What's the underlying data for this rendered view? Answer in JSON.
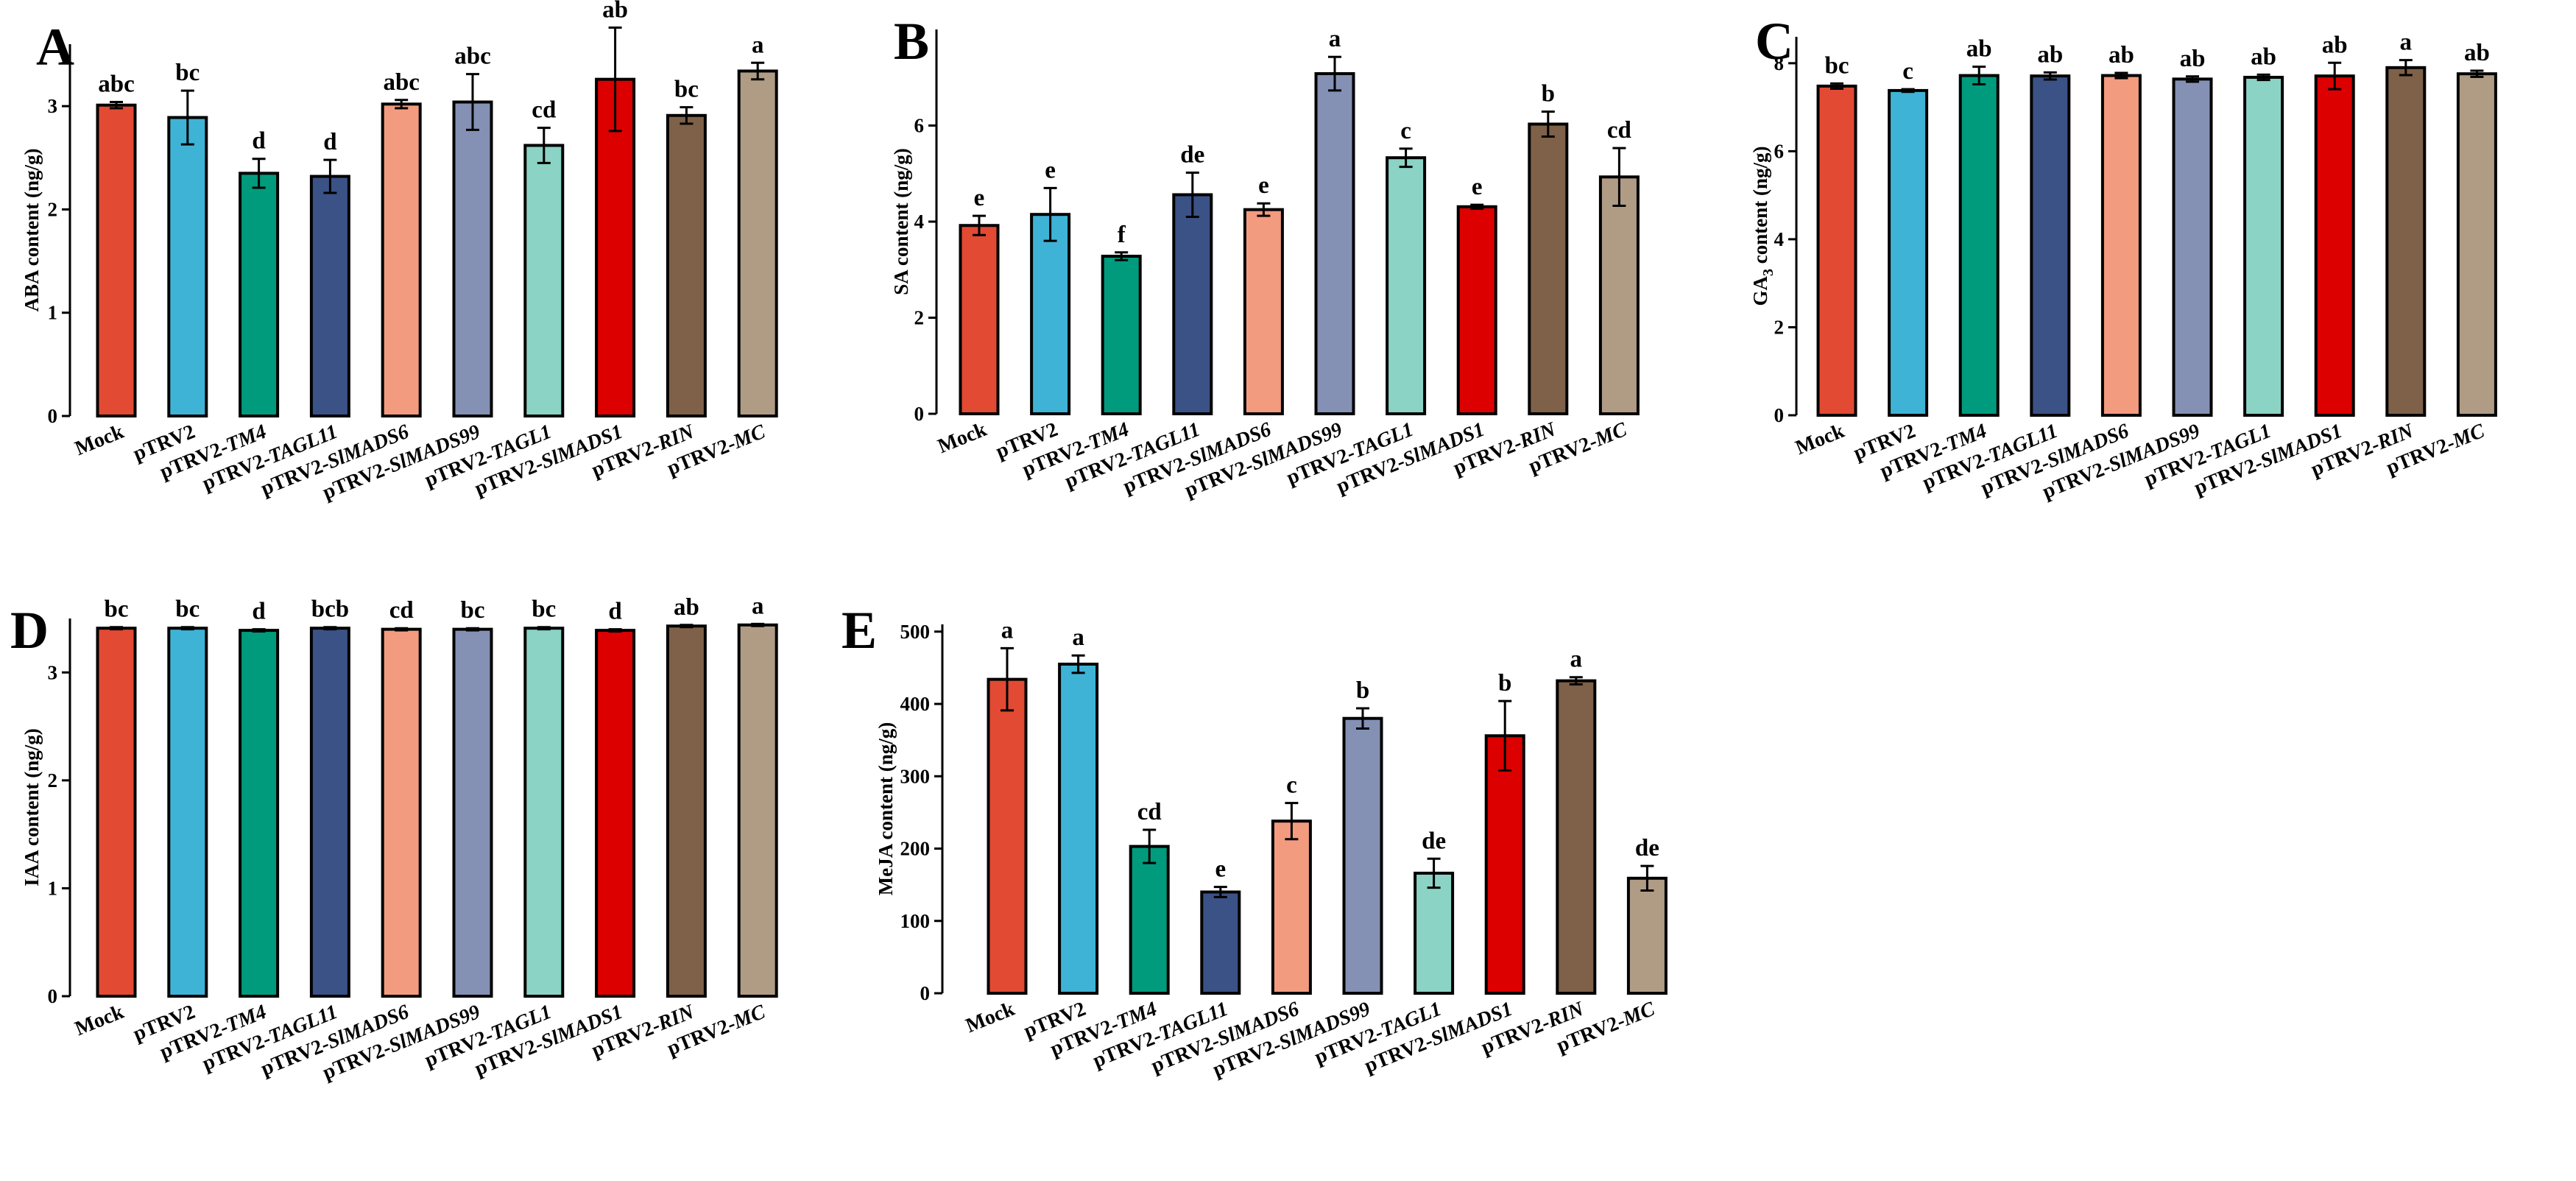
{
  "colors": [
    "#e24a33",
    "#3fb3d5",
    "#009b7d",
    "#3b5286",
    "#f39b7f",
    "#8491b4",
    "#8bd3c4",
    "#dc0000",
    "#7e6148",
    "#b09c85"
  ],
  "categories": [
    {
      "prefix": "",
      "gene": "Mock"
    },
    {
      "prefix": "pTRV2",
      "gene": ""
    },
    {
      "prefix": "pTRV2-",
      "gene": "TM4"
    },
    {
      "prefix": "pTRV2-",
      "gene": "TAGL11"
    },
    {
      "prefix": "pTRV2-",
      "gene": "SlMADS6"
    },
    {
      "prefix": "pTRV2-",
      "gene": "SlMADS99"
    },
    {
      "prefix": "pTRV2-",
      "gene": "TAGL1"
    },
    {
      "prefix": "pTRV2-",
      "gene": "SlMADS1"
    },
    {
      "prefix": "pTRV2-",
      "gene": "RIN"
    },
    {
      "prefix": "pTRV2-",
      "gene": "MC"
    }
  ],
  "chart_data": [
    {
      "type": "bar",
      "panel": "A",
      "ylabel": "ABA content (ng/g)",
      "ylim": [
        0,
        3.6
      ],
      "yticks": [
        0,
        1,
        2,
        3
      ],
      "values": [
        3.01,
        2.89,
        2.35,
        2.32,
        3.02,
        3.04,
        2.62,
        3.26,
        2.91,
        3.34
      ],
      "errors": [
        0.03,
        0.26,
        0.14,
        0.16,
        0.04,
        0.27,
        0.17,
        0.5,
        0.08,
        0.08
      ],
      "labels": [
        "abc",
        "bc",
        "d",
        "d",
        "abc",
        "abc",
        "cd",
        "ab",
        "bc",
        "a"
      ]
    },
    {
      "type": "bar",
      "panel": "B",
      "ylabel": "SA content (ng/g)",
      "ylim": [
        0,
        8
      ],
      "yticks": [
        0,
        2,
        4,
        6
      ],
      "values": [
        3.92,
        4.15,
        3.28,
        4.56,
        4.25,
        7.08,
        5.33,
        4.31,
        6.03,
        4.93
      ],
      "errors": [
        0.2,
        0.55,
        0.08,
        0.46,
        0.13,
        0.35,
        0.19,
        0.04,
        0.26,
        0.6
      ],
      "labels": [
        "e",
        "e",
        "f",
        "de",
        "e",
        "a",
        "c",
        "e",
        "b",
        "cd"
      ]
    },
    {
      "type": "bar",
      "panel": "C",
      "ylabel_main": "GA",
      "ylabel_sub": "3",
      "ylabel_rest": " content (ng/g)",
      "ylim": [
        0,
        8.6
      ],
      "yticks": [
        0,
        2,
        4,
        6,
        8
      ],
      "values": [
        7.48,
        7.38,
        7.72,
        7.71,
        7.72,
        7.64,
        7.68,
        7.71,
        7.9,
        7.76
      ],
      "errors": [
        0.06,
        0.03,
        0.2,
        0.08,
        0.06,
        0.06,
        0.06,
        0.3,
        0.17,
        0.07
      ],
      "labels": [
        "bc",
        "c",
        "ab",
        "ab",
        "ab",
        "ab",
        "ab",
        "ab",
        "a",
        "ab"
      ]
    },
    {
      "type": "bar",
      "panel": "D",
      "ylabel": "IAA content (ng/g)",
      "ylim": [
        0,
        3.5
      ],
      "yticks": [
        0,
        1,
        2,
        3
      ],
      "values": [
        3.41,
        3.41,
        3.39,
        3.41,
        3.4,
        3.4,
        3.41,
        3.39,
        3.43,
        3.44
      ],
      "errors": [
        0.01,
        0.01,
        0.01,
        0.01,
        0.01,
        0.01,
        0.01,
        0.01,
        0.01,
        0.01
      ],
      "labels": [
        "bc",
        "bc",
        "d",
        "bcb",
        "cd",
        "bc",
        "bc",
        "d",
        "ab",
        "a"
      ]
    },
    {
      "type": "bar",
      "panel": "E",
      "ylabel": "MeJA content (ng/g)",
      "ylim": [
        0,
        510
      ],
      "yticks": [
        0,
        100,
        200,
        300,
        400,
        500
      ],
      "values": [
        434,
        455,
        203,
        140,
        238,
        380,
        166,
        356,
        432,
        159
      ],
      "errors": [
        43,
        12,
        23,
        7,
        25,
        14,
        20,
        48,
        5,
        17
      ],
      "labels": [
        "a",
        "a",
        "cd",
        "e",
        "c",
        "b",
        "de",
        "b",
        "a",
        "de"
      ]
    }
  ]
}
